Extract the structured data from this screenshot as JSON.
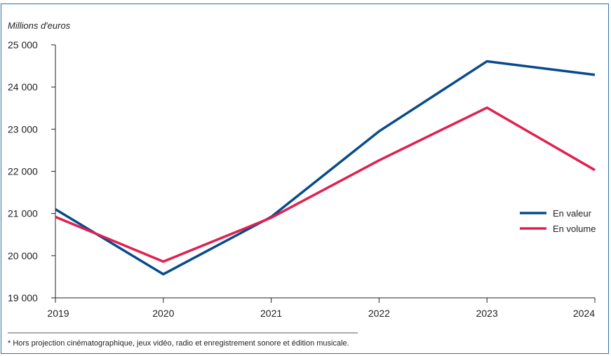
{
  "chart_data": {
    "type": "line",
    "ylabel": "Millions d'euros",
    "x": [
      "2019",
      "2020",
      "2021",
      "2022",
      "2023",
      "2024"
    ],
    "ylim": [
      19000,
      25000
    ],
    "yticks": [
      19000,
      20000,
      21000,
      22000,
      23000,
      24000,
      25000
    ],
    "ytick_labels": [
      "19 000",
      "20 000",
      "21 000",
      "22 000",
      "23 000",
      "24 000",
      "25 000"
    ],
    "grid": false,
    "legend_position": "right",
    "series": [
      {
        "name": "En valeur",
        "color": "#084a8c",
        "values": [
          21100,
          19560,
          20920,
          22950,
          24610,
          24290
        ]
      },
      {
        "name": "En volume",
        "color": "#e0204f",
        "values": [
          20920,
          19860,
          20900,
          22260,
          23510,
          22030
        ]
      }
    ],
    "footnote": "* Hors projection cinématographique, jeux vidéo, radio et enregistrement sonore et édition musicale."
  }
}
